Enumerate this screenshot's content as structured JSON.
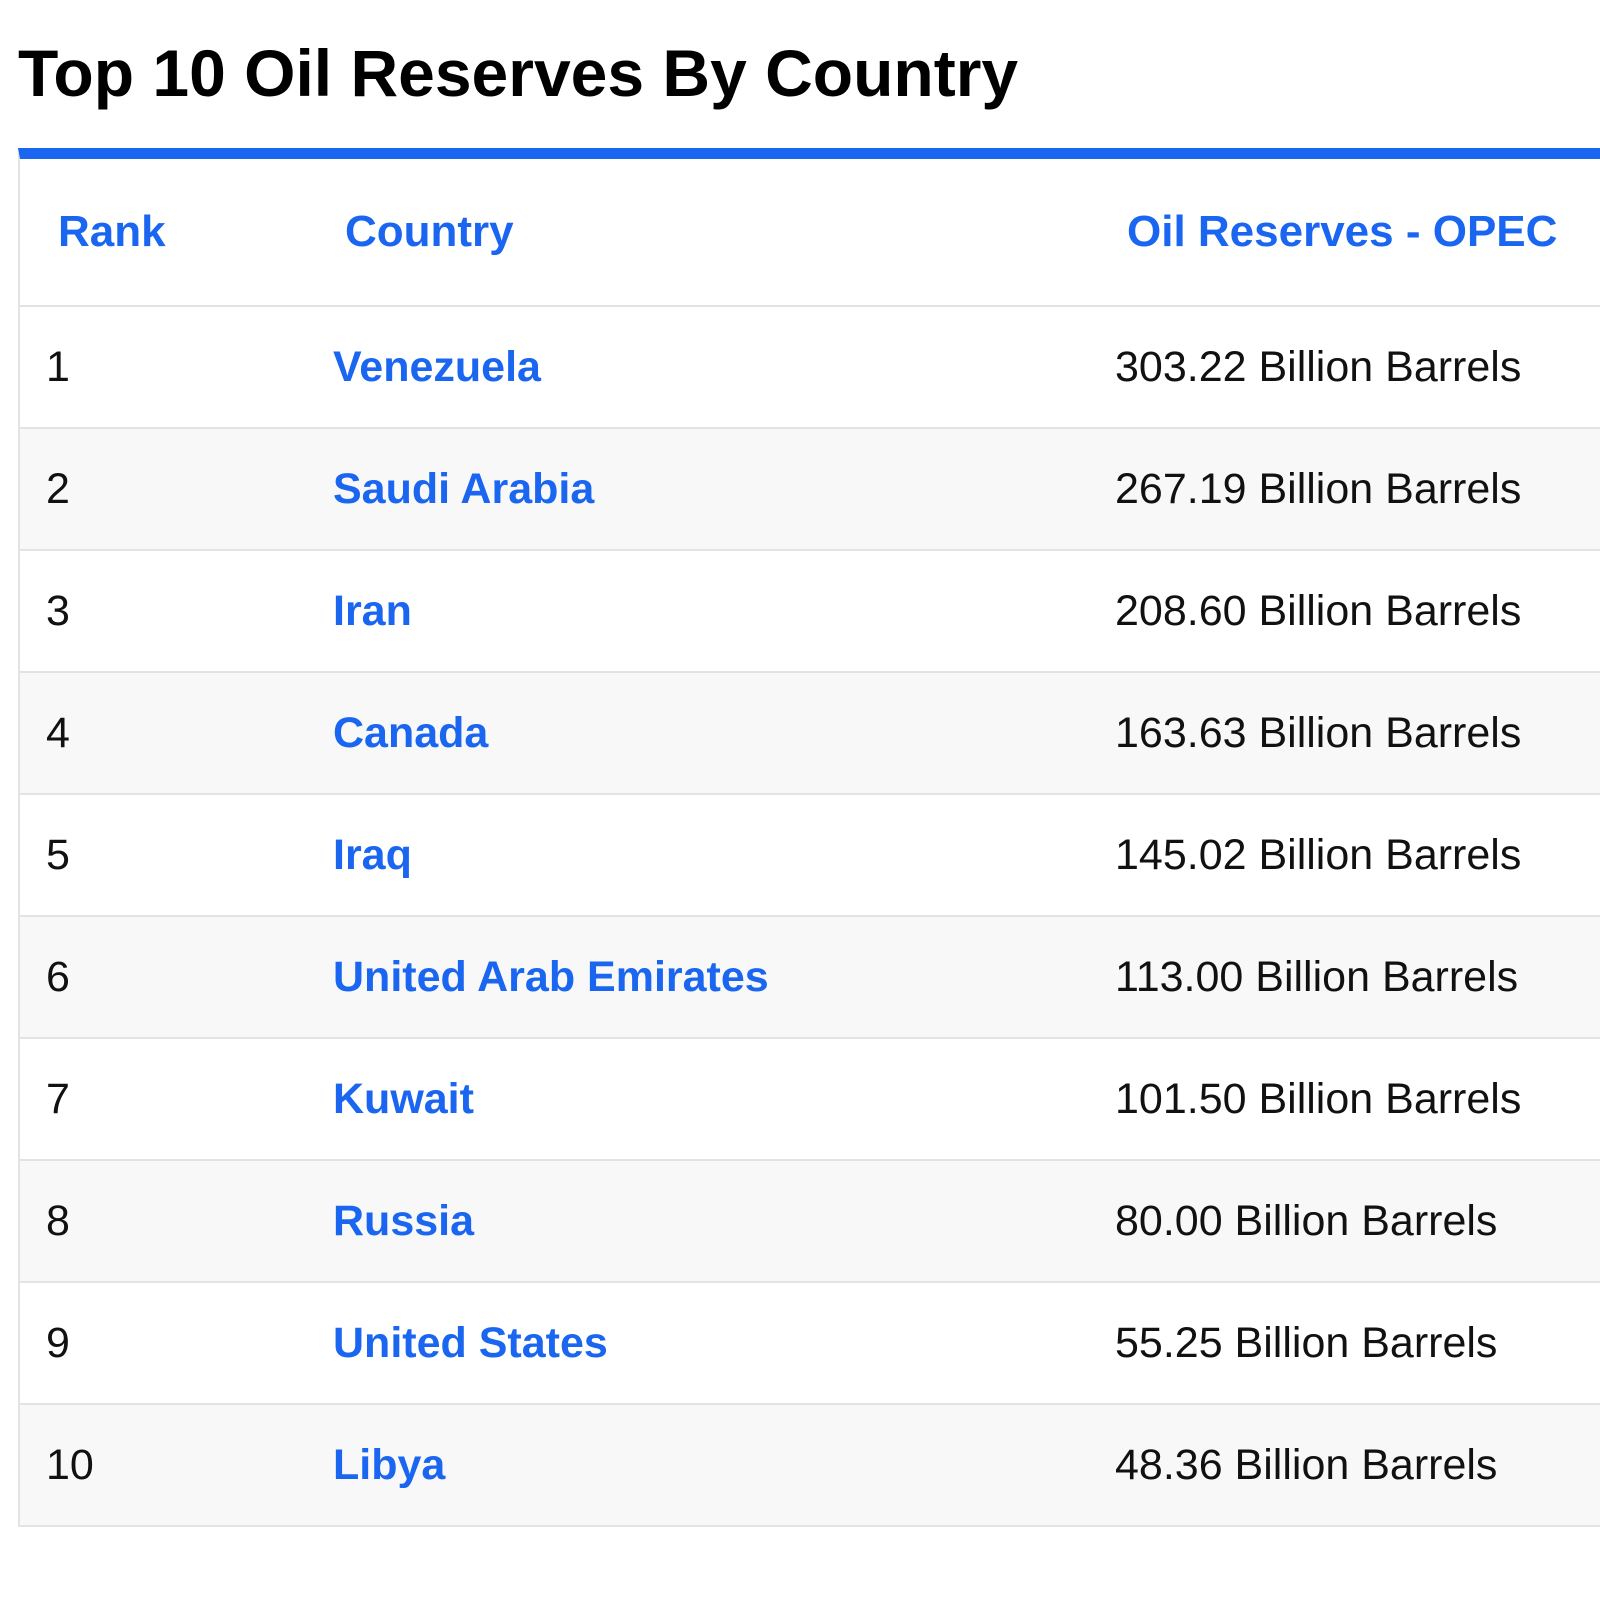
{
  "title": "Top 10 Oil Reserves By Country",
  "accent_color": "#1a66f0",
  "table": {
    "headers": {
      "rank": "Rank",
      "country": "Country",
      "oil": "Oil Reserves - OPEC"
    },
    "rows": [
      {
        "rank": "1",
        "country": "Venezuela",
        "oil": "303.22 Billion Barrels"
      },
      {
        "rank": "2",
        "country": "Saudi Arabia",
        "oil": "267.19 Billion Barrels"
      },
      {
        "rank": "3",
        "country": "Iran",
        "oil": "208.60 Billion Barrels"
      },
      {
        "rank": "4",
        "country": "Canada",
        "oil": "163.63 Billion Barrels"
      },
      {
        "rank": "5",
        "country": "Iraq",
        "oil": "145.02 Billion Barrels"
      },
      {
        "rank": "6",
        "country": "United Arab Emirates",
        "oil": "113.00 Billion Barrels"
      },
      {
        "rank": "7",
        "country": "Kuwait",
        "oil": "101.50 Billion Barrels"
      },
      {
        "rank": "8",
        "country": "Russia",
        "oil": "80.00 Billion Barrels"
      },
      {
        "rank": "9",
        "country": "United States",
        "oil": "55.25 Billion Barrels"
      },
      {
        "rank": "10",
        "country": "Libya",
        "oil": "48.36 Billion Barrels"
      }
    ]
  }
}
